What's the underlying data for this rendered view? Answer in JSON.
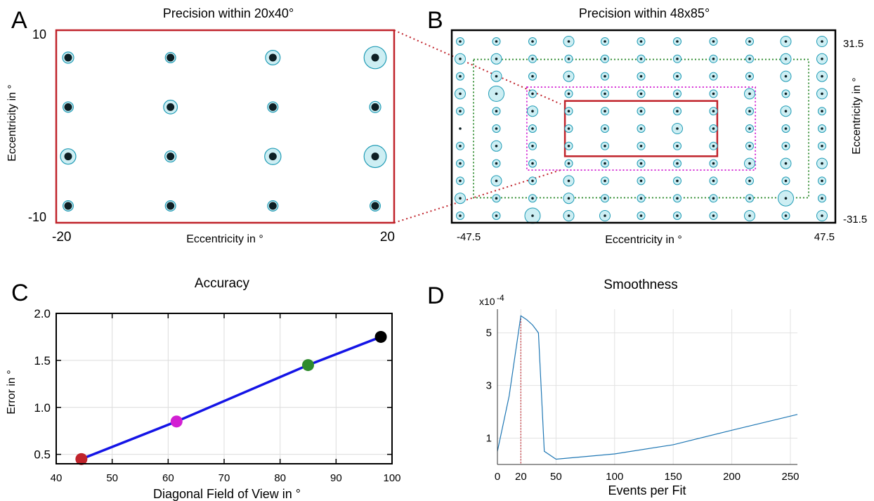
{
  "panels": {
    "A": {
      "letter": "A",
      "title": "Precision within 20x40°",
      "xlabel": "Eccentricity in °",
      "ylabel": "Eccentricity in °",
      "x_ticks": [
        "-20",
        "20"
      ],
      "y_ticks": [
        "10",
        "-10"
      ],
      "frame_color": "#c0232b"
    },
    "B": {
      "letter": "B",
      "title": "Precision within 48x85°",
      "xlabel": "Eccentricity in °",
      "ylabel": "Eccentricity in °",
      "x_ticks": [
        "-47.5",
        "47.5"
      ],
      "y_ticks": [
        "31.5",
        "-31.5"
      ],
      "frame_color": "#000000"
    },
    "C": {
      "letter": "C",
      "title": "Accuracy",
      "xlabel": "Diagonal Field of View in °",
      "ylabel": "Error in °"
    },
    "D": {
      "letter": "D",
      "title": "Smoothness",
      "xlabel": "Events per Fit",
      "exponent_base": "x10",
      "exponent_power": "-4"
    }
  },
  "colors": {
    "circle_fill": "#cdeef3",
    "circle_stroke": "#1f9bb5",
    "dot": "#0d1f24",
    "red": "#c0232b",
    "magenta": "#d21fd2",
    "green": "#2e8b2e",
    "blue_line": "#1414e6",
    "smooth_line": "#1f77b4"
  },
  "chart_data": [
    {
      "panel": "A",
      "type": "scatter",
      "description_units": "degrees",
      "xlim": [
        -20,
        20
      ],
      "ylim": [
        -10,
        10
      ],
      "points": [
        {
          "x": -20,
          "y": 8.75,
          "r": 0.5
        },
        {
          "x": -7,
          "y": 8.75,
          "r": 0.4
        },
        {
          "x": 6,
          "y": 8.75,
          "r": 0.9
        },
        {
          "x": 19,
          "y": 8.75,
          "r": 1.8
        },
        {
          "x": -20,
          "y": 3.25,
          "r": 0.4
        },
        {
          "x": -7,
          "y": 3.25,
          "r": 0.8
        },
        {
          "x": 6,
          "y": 3.25,
          "r": 0.4
        },
        {
          "x": 19,
          "y": 3.25,
          "r": 0.5
        },
        {
          "x": -20,
          "y": -2.25,
          "r": 1.0
        },
        {
          "x": -7,
          "y": -2.25,
          "r": 0.5
        },
        {
          "x": 6,
          "y": -2.25,
          "r": 1.1
        },
        {
          "x": 19,
          "y": -2.25,
          "r": 1.8
        },
        {
          "x": -20,
          "y": -7.75,
          "r": 0.4
        },
        {
          "x": -7,
          "y": -7.75,
          "r": 0.4
        },
        {
          "x": 6,
          "y": -7.75,
          "r": 0.4
        },
        {
          "x": 19,
          "y": -7.75,
          "r": 0.4
        }
      ]
    },
    {
      "panel": "B",
      "type": "scatter",
      "xlim": [
        -47.5,
        47.5
      ],
      "ylim": [
        -31.5,
        31.5
      ],
      "grid_cols": 11,
      "grid_rows": 11,
      "radius_grid": [
        [
          1,
          1,
          1,
          2,
          1,
          1,
          1,
          1,
          1,
          2,
          2
        ],
        [
          2,
          2,
          1,
          1,
          1,
          1,
          1,
          1,
          1,
          2,
          2
        ],
        [
          1,
          2,
          1,
          2,
          1,
          1,
          1,
          1,
          1,
          2,
          2
        ],
        [
          2,
          3,
          1,
          1,
          1,
          1,
          1,
          1,
          2,
          1,
          2
        ],
        [
          1,
          1,
          2,
          1,
          1,
          1,
          1,
          1,
          1,
          2,
          1
        ],
        [
          0,
          1,
          1,
          1,
          1,
          1,
          2,
          1,
          1,
          1,
          1
        ],
        [
          1,
          2,
          1,
          1,
          1,
          1,
          1,
          1,
          1,
          1,
          1
        ],
        [
          1,
          1,
          1,
          1,
          1,
          1,
          1,
          1,
          2,
          2,
          2
        ],
        [
          1,
          2,
          1,
          2,
          1,
          1,
          1,
          1,
          1,
          1,
          1
        ],
        [
          2,
          1,
          1,
          2,
          1,
          1,
          1,
          1,
          1,
          3,
          1
        ],
        [
          1,
          1,
          3,
          2,
          2,
          1,
          1,
          1,
          2,
          1,
          2
        ]
      ],
      "regions": [
        {
          "name": "20x40",
          "x": [
            -20,
            20
          ],
          "y": [
            -10,
            10
          ],
          "style": "solid",
          "color": "red"
        },
        {
          "name": "magenta",
          "x": [
            -30,
            30
          ],
          "y": [
            -15,
            15
          ],
          "style": "dotted",
          "color": "magenta"
        },
        {
          "name": "green",
          "x": [
            -44,
            44
          ],
          "y": [
            -25,
            25
          ],
          "style": "dotted",
          "color": "green"
        }
      ]
    },
    {
      "panel": "C",
      "type": "line",
      "xlim": [
        40,
        100
      ],
      "ylim": [
        0.4,
        2.0
      ],
      "x_ticks": [
        40,
        50,
        60,
        70,
        80,
        90,
        100
      ],
      "y_ticks": [
        0.5,
        1.0,
        1.5,
        2.0
      ],
      "y_tick_labels": [
        "0.5",
        "1.0",
        "1.5",
        "2.0"
      ],
      "grid": true,
      "x": [
        44.5,
        61.5,
        85,
        98
      ],
      "y": [
        0.45,
        0.85,
        1.45,
        1.75
      ],
      "marker_colors": [
        "red",
        "magenta",
        "green",
        "black"
      ]
    },
    {
      "panel": "D",
      "type": "line",
      "xlim": [
        0,
        256
      ],
      "ylim": [
        0,
        5.9
      ],
      "x_ticks": [
        0,
        20,
        50,
        100,
        150,
        200,
        250
      ],
      "y_ticks": [
        1,
        3,
        5
      ],
      "grid": true,
      "x": [
        0,
        10,
        20,
        25,
        30,
        35,
        40,
        50,
        100,
        150,
        200,
        256
      ],
      "y": [
        0.5,
        2.6,
        5.65,
        5.5,
        5.3,
        5.0,
        0.5,
        0.2,
        0.4,
        0.75,
        1.3,
        1.9
      ],
      "vline_x": 20,
      "vline_color": "red"
    }
  ]
}
